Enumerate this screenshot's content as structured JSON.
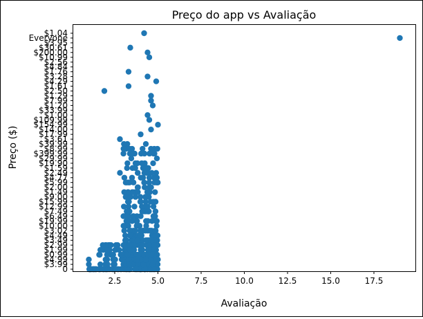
{
  "chart_data": {
    "type": "scatter",
    "title": "Preço do app vs Avaliação",
    "xlabel": "Avaliação",
    "ylabel": "Preço ($)",
    "xlim": [
      0.1,
      19.9
    ],
    "xticks": [
      2.5,
      5.0,
      7.5,
      10.0,
      12.5,
      15.0,
      17.5
    ],
    "xtick_labels": [
      "2.5",
      "5.0",
      "7.5",
      "10.0",
      "12.5",
      "15.0",
      "17.5"
    ],
    "y_axis_kind": "categorical (overlapping tick labels)",
    "ytick_labels": [
      "$1.04",
      "Everyone",
      "$3.95",
      "$30.61",
      "$200.00",
      "$10.99",
      "$2.56",
      "$4.84",
      "$1.76",
      "$3.28",
      "$4.29",
      "$1.61",
      "$2.50",
      "$1.29",
      "$7.99",
      "$1.20",
      "$33.99",
      "$1.00",
      "$109.99",
      "$154.99",
      "$14.00",
      "$17.99",
      "$3.61",
      "$39.99",
      "$8.99",
      "$399.99",
      "$29.99",
      "$19.90",
      "$1.59",
      "$2.49",
      "$4.77",
      "$5.99",
      "$2.00",
      "$1.49",
      "$9.00",
      "$15.99",
      "$12.99",
      "$7.49",
      "$6.49",
      "$19.99",
      "$10.00",
      "$3.02",
      "$4.49",
      "$3.49",
      "$2.99",
      "$1.99",
      "$0.99",
      "$4.99",
      "$3.99",
      "0"
    ],
    "points": [
      {
        "x": 19.0,
        "y": "Everyone"
      },
      {
        "x": 4.2,
        "y": "$1.04"
      },
      {
        "x": 3.4,
        "y": "$30.61"
      },
      {
        "x": 4.4,
        "y": "$200.00"
      },
      {
        "x": 4.5,
        "y": "$10.99"
      },
      {
        "x": 3.3,
        "y": "$1.76"
      },
      {
        "x": 4.4,
        "y": "$3.28"
      },
      {
        "x": 4.9,
        "y": "$4.29"
      },
      {
        "x": 1.9,
        "y": "$2.50"
      },
      {
        "x": 4.6,
        "y": "$1.29"
      },
      {
        "x": 3.3,
        "y": "$1.61"
      },
      {
        "x": 4.6,
        "y": "$7.99"
      },
      {
        "x": 4.7,
        "y": "$1.20"
      },
      {
        "x": 4.4,
        "y": "$1.00"
      },
      {
        "x": 4.5,
        "y": "$109.99"
      },
      {
        "x": 5.0,
        "y": "$154.99"
      },
      {
        "x": 4.6,
        "y": "$14.00"
      },
      {
        "x": 4.0,
        "y": "$17.99"
      },
      {
        "x": 2.8,
        "y": "$3.61"
      },
      {
        "x": 4.3,
        "y": "$39.99"
      },
      {
        "x": 3.5,
        "y": "$8.99"
      },
      {
        "x": 4.8,
        "y": "$399.99"
      },
      {
        "x": 2.8,
        "y": "$2.49"
      },
      {
        "x": 3.5,
        "y": "$4.77"
      },
      {
        "x": 4.8,
        "y": "$5.99"
      },
      {
        "x": 3.2,
        "y": "$9.00"
      },
      {
        "x": 4.0,
        "y": "$15.99"
      },
      {
        "x": 3.3,
        "y": "$12.99"
      },
      {
        "x": 4.0,
        "y": "$6.49"
      },
      {
        "x": 3.5,
        "y": "$19.99"
      },
      {
        "x": 4.4,
        "y": "$3.02"
      },
      {
        "x": 2.2,
        "y": "$2.99"
      },
      {
        "x": 2.0,
        "y": "$1.99"
      },
      {
        "x": 1.6,
        "y": "$0.99"
      },
      {
        "x": 1.0,
        "y": "$4.99"
      },
      {
        "x": 1.0,
        "y": "$3.99"
      }
    ],
    "color": "#1f77b4",
    "grid": false,
    "legend": "none"
  }
}
